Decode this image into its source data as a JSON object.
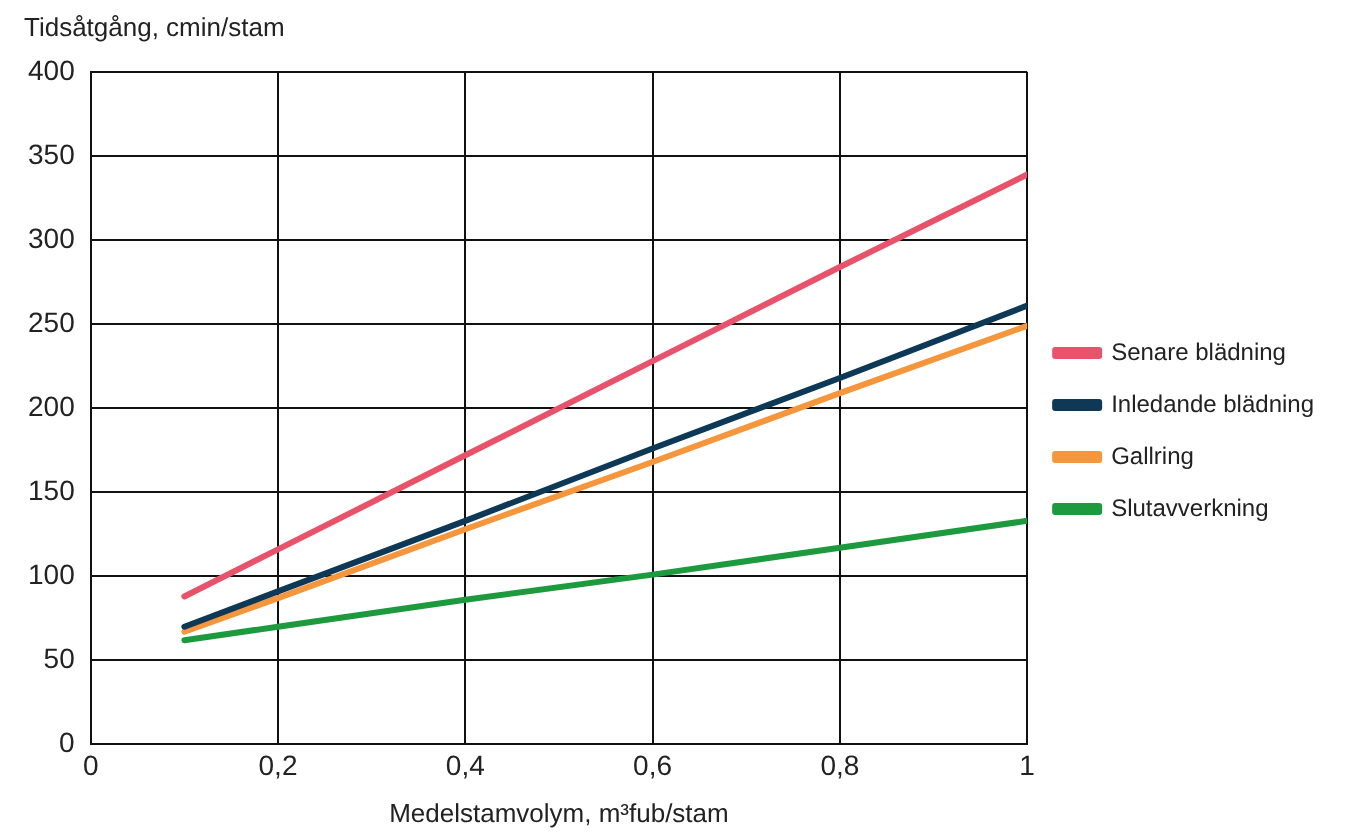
{
  "chart_data": {
    "type": "line",
    "ylabel": "Tidsåtgång, cmin/stam",
    "xlabel": "Medelstamvolym, m³fub/stam",
    "x": [
      0.1,
      0.2,
      0.4,
      0.6,
      0.8,
      1
    ],
    "series": [
      {
        "name": "Senare blädning",
        "color": "#e8536b",
        "values": [
          88,
          116,
          172,
          228,
          284,
          339
        ]
      },
      {
        "name": "Inledande blädning",
        "color": "#0d3856",
        "values": [
          70,
          91,
          133,
          176,
          218,
          261
        ]
      },
      {
        "name": "Gallring",
        "color": "#f5963c",
        "values": [
          67,
          87,
          128,
          168,
          209,
          249
        ]
      },
      {
        "name": "Slutavverkning",
        "color": "#1d9a3e",
        "values": [
          62,
          70,
          86,
          101,
          117,
          133
        ]
      }
    ],
    "xlim": [
      0,
      1
    ],
    "xticks": [
      {
        "value": 0,
        "label": "0"
      },
      {
        "value": 0.2,
        "label": "0,2"
      },
      {
        "value": 0.4,
        "label": "0,4"
      },
      {
        "value": 0.6,
        "label": "0,6"
      },
      {
        "value": 0.8,
        "label": "0,8"
      },
      {
        "value": 1,
        "label": "1"
      }
    ],
    "ylim": [
      0,
      400
    ],
    "yticks": [
      0,
      50,
      100,
      150,
      200,
      250,
      300,
      350,
      400
    ],
    "grid": true,
    "legend": "right",
    "marker": "none",
    "line_style": "solid"
  }
}
